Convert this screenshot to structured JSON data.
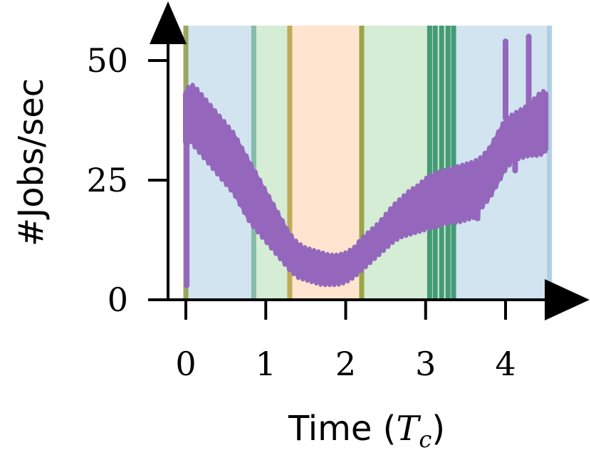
{
  "chart_data": {
    "type": "line",
    "title": "",
    "xlabel": "Time (",
    "xlabel_math": "T",
    "xlabel_sub": "c",
    "xlabel_close": ")",
    "ylabel": "#Jobs/sec",
    "xlim": [
      -0.2,
      4.55
    ],
    "ylim": [
      0,
      57
    ],
    "x_ticks": [
      0,
      1,
      2,
      3,
      4
    ],
    "x_tick_labels": [
      "0",
      "1",
      "2",
      "3",
      "4"
    ],
    "y_ticks": [
      0,
      25,
      50
    ],
    "y_tick_labels": [
      "0",
      "25",
      "50"
    ],
    "grid": false,
    "legend": "none",
    "series_color": "#9467bd",
    "regions": [
      {
        "x0": 0.0,
        "x1": 0.85,
        "color": "#1f77b4"
      },
      {
        "x0": 0.85,
        "x1": 1.3,
        "color": "#2ca02c"
      },
      {
        "x0": 1.3,
        "x1": 2.2,
        "color": "#ff7f0e"
      },
      {
        "x0": 2.2,
        "x1": 3.05,
        "color": "#2ca02c"
      },
      {
        "x0": 3.05,
        "x1": 3.35,
        "color": "#2ca02c"
      },
      {
        "x0": 3.35,
        "x1": 4.55,
        "color": "#1f77b4"
      }
    ],
    "region_borders": [
      {
        "x": 0.0,
        "color": "#8c9a3f"
      },
      {
        "x": 0.85,
        "color": "#78b4a0"
      },
      {
        "x": 1.3,
        "color": "#b8a040"
      },
      {
        "x": 2.2,
        "color": "#8c9a2a"
      },
      {
        "x": 3.05,
        "color": "#2a8c64"
      },
      {
        "x": 3.12,
        "color": "#2a8c64"
      },
      {
        "x": 3.2,
        "color": "#2a8c64"
      },
      {
        "x": 3.28,
        "color": "#2a8c64"
      },
      {
        "x": 3.35,
        "color": "#2a8c64"
      },
      {
        "x": 4.55,
        "color": "#a8c8e0"
      }
    ],
    "series": [
      {
        "band_upper": {
          "x": [
            0.0,
            0.05,
            0.1,
            0.2,
            0.3,
            0.4,
            0.5,
            0.6,
            0.7,
            0.8,
            0.9,
            1.0,
            1.1,
            1.2,
            1.3,
            1.4,
            1.5,
            1.6,
            1.7,
            1.8,
            1.9,
            2.0,
            2.1,
            2.2,
            2.3,
            2.4,
            2.5,
            2.6,
            2.7,
            2.8,
            2.9,
            3.0,
            3.1,
            3.2,
            3.3,
            3.4,
            3.5,
            3.6,
            3.7,
            3.8,
            3.9,
            4.0,
            4.1,
            4.2,
            4.3,
            4.4,
            4.5
          ],
          "y": [
            43,
            44,
            44,
            42,
            40,
            38,
            36,
            34,
            31,
            28,
            25,
            22,
            19,
            16,
            13,
            11,
            10,
            9.5,
            9,
            8.5,
            8.5,
            9,
            10,
            12,
            13.5,
            15,
            17,
            19,
            20.5,
            22,
            23,
            24.5,
            25.5,
            26,
            26.5,
            27,
            27.5,
            28,
            29,
            31,
            34,
            37,
            38,
            39,
            40,
            42,
            43
          ]
        },
        "band_lower": {
          "x": [
            0.0,
            0.05,
            0.1,
            0.2,
            0.3,
            0.4,
            0.5,
            0.6,
            0.7,
            0.8,
            0.9,
            1.0,
            1.1,
            1.2,
            1.3,
            1.4,
            1.5,
            1.6,
            1.7,
            1.8,
            1.9,
            2.0,
            2.1,
            2.2,
            2.3,
            2.4,
            2.5,
            2.6,
            2.7,
            2.8,
            2.9,
            3.0,
            3.1,
            3.2,
            3.3,
            3.4,
            3.5,
            3.6,
            3.7,
            3.8,
            3.9,
            4.0,
            4.1,
            4.2,
            4.3,
            4.4,
            4.5
          ],
          "y": [
            33,
            34,
            33,
            31,
            29,
            27,
            25,
            23,
            20,
            17,
            15,
            13,
            11,
            9,
            7,
            5.5,
            5,
            4.5,
            4,
            4,
            4,
            4.5,
            5.5,
            7,
            8.5,
            10,
            11.5,
            13,
            14,
            14.5,
            15,
            15.5,
            16,
            16.5,
            17,
            17,
            17.5,
            18,
            20,
            22,
            25,
            28,
            30,
            30.5,
            31,
            31,
            31.5
          ]
        },
        "spikes": [
          {
            "x": 0.01,
            "low": 3,
            "high": 40
          },
          {
            "x": 4.0,
            "low": 38,
            "high": 54
          },
          {
            "x": 4.29,
            "low": 38,
            "high": 55
          },
          {
            "x": 4.12,
            "low": 27,
            "high": 36
          },
          {
            "x": 3.65,
            "low": 17,
            "high": 27
          }
        ]
      }
    ]
  }
}
